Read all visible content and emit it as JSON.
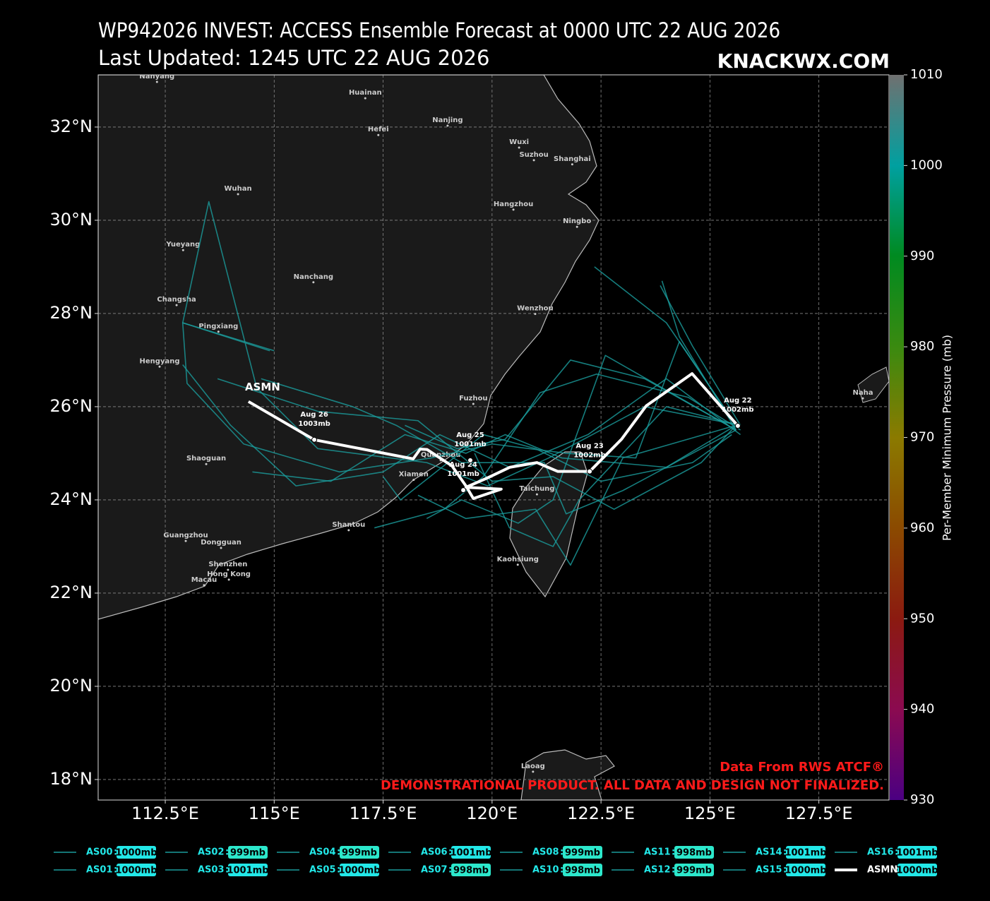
{
  "chart_data": {
    "type": "track-map",
    "title": "WP942026 INVEST: ACCESS Ensemble Forecast at 0000 UTC 22 AUG 2026",
    "subtitle": "Last Updated: 1245 UTC 22 AUG 2026",
    "brand": "KNACKWX.COM",
    "xlim": [
      110.96,
      129.11
    ],
    "ylim": [
      17.56,
      33.12
    ],
    "xticks": [
      {
        "value": 112.5,
        "label": "112.5°E"
      },
      {
        "value": 115,
        "label": "115°E"
      },
      {
        "value": 117.5,
        "label": "117.5°E"
      },
      {
        "value": 120,
        "label": "120°E"
      },
      {
        "value": 122.5,
        "label": "122.5°E"
      },
      {
        "value": 125,
        "label": "125°E"
      },
      {
        "value": 127.5,
        "label": "127.5°E"
      }
    ],
    "yticks": [
      {
        "value": 18,
        "label": "18°N"
      },
      {
        "value": 20,
        "label": "20°N"
      },
      {
        "value": 22,
        "label": "22°N"
      },
      {
        "value": 24,
        "label": "24°N"
      },
      {
        "value": 26,
        "label": "26°N"
      },
      {
        "value": 28,
        "label": "28°N"
      },
      {
        "value": 30,
        "label": "30°N"
      },
      {
        "value": 32,
        "label": "32°N"
      }
    ],
    "grid": true,
    "colorbar": {
      "label": "Per-Member Minimum Pressure (mb)",
      "ylim": [
        930,
        1010
      ],
      "yticks": [
        930,
        940,
        950,
        960,
        970,
        980,
        990,
        1000,
        1010
      ],
      "colors": [
        "#4b0082",
        "#8b0a50",
        "#8b1a10",
        "#8b4a00",
        "#8b7a00",
        "#3a8a10",
        "#008a20",
        "#00a0a0",
        "#707070"
      ]
    },
    "cities": [
      {
        "name": "Nanyang",
        "lon": 112.31,
        "lat": 33.09
      },
      {
        "name": "Huainan",
        "lon": 117.09,
        "lat": 32.74
      },
      {
        "name": "Hefei",
        "lon": 117.39,
        "lat": 31.95
      },
      {
        "name": "Nanjing",
        "lon": 118.98,
        "lat": 32.15
      },
      {
        "name": "Wuxi",
        "lon": 120.62,
        "lat": 31.68
      },
      {
        "name": "Suzhou",
        "lon": 120.96,
        "lat": 31.41
      },
      {
        "name": "Shanghai",
        "lon": 121.84,
        "lat": 31.32
      },
      {
        "name": "Wuhan",
        "lon": 114.17,
        "lat": 30.68
      },
      {
        "name": "Hangzhou",
        "lon": 120.49,
        "lat": 30.35
      },
      {
        "name": "Ningbo",
        "lon": 121.95,
        "lat": 29.98
      },
      {
        "name": "Yueyang",
        "lon": 112.91,
        "lat": 29.48
      },
      {
        "name": "Nanchang",
        "lon": 115.9,
        "lat": 28.79
      },
      {
        "name": "Changsha",
        "lon": 112.76,
        "lat": 28.3
      },
      {
        "name": "Wenzhou",
        "lon": 120.99,
        "lat": 28.11
      },
      {
        "name": "Pingxiang",
        "lon": 113.72,
        "lat": 27.73
      },
      {
        "name": "Hengyang",
        "lon": 112.37,
        "lat": 26.98
      },
      {
        "name": "Fuzhou",
        "lon": 119.57,
        "lat": 26.18
      },
      {
        "name": "Naha",
        "lon": 128.51,
        "lat": 26.3
      },
      {
        "name": "Quanzhou",
        "lon": 118.82,
        "lat": 24.97
      },
      {
        "name": "Xiamen",
        "lon": 118.2,
        "lat": 24.55
      },
      {
        "name": "Shaoguan",
        "lon": 113.44,
        "lat": 24.89
      },
      {
        "name": "Taichung",
        "lon": 121.03,
        "lat": 24.24
      },
      {
        "name": "Shantou",
        "lon": 116.71,
        "lat": 23.47
      },
      {
        "name": "Guangzhou",
        "lon": 112.97,
        "lat": 23.24
      },
      {
        "name": "Dongguan",
        "lon": 113.78,
        "lat": 23.09
      },
      {
        "name": "Shenzhen",
        "lon": 113.94,
        "lat": 22.62
      },
      {
        "name": "Hong Kong",
        "lon": 113.96,
        "lat": 22.41
      },
      {
        "name": "Macau",
        "lon": 113.39,
        "lat": 22.29
      },
      {
        "name": "Kaohsiung",
        "lon": 120.59,
        "lat": 22.73
      },
      {
        "name": "Laoag",
        "lon": 120.94,
        "lat": 18.29
      }
    ],
    "series": [
      {
        "name": "AS00",
        "pressure": "1000mb",
        "color": "#1a9c9c",
        "badge": "#22e8e8",
        "x": [
          125.7,
          124.6,
          123.86
        ],
        "y": [
          25.6,
          27.3,
          28.6
        ]
      },
      {
        "name": "AS01",
        "pressure": "1000mb",
        "color": "#1a9c9c",
        "badge": "#22e8e8",
        "x": [
          125.6,
          124.3,
          123.9
        ],
        "y": [
          25.5,
          27.5,
          28.7
        ]
      },
      {
        "name": "AS02",
        "pressure": "999mb",
        "color": "#1a9c9c",
        "badge": "#2ce8cc",
        "x": [
          125.6,
          123.5,
          121.8,
          120.3,
          119.2,
          118.0
        ],
        "y": [
          25.5,
          26.6,
          27.0,
          25.3,
          25.1,
          25.6
        ]
      },
      {
        "name": "AS03",
        "pressure": "1001mb",
        "color": "#1a9c9c",
        "badge": "#22e8e8",
        "x": [
          125.7,
          123.5,
          121.3,
          119.9,
          118.5,
          116.0,
          114.6,
          113.5,
          112.9,
          114.9
        ],
        "y": [
          25.6,
          26.0,
          24.9,
          24.3,
          24.8,
          25.1,
          26.4,
          30.4,
          27.8,
          27.2
        ]
      },
      {
        "name": "AS04",
        "pressure": "999mb",
        "color": "#1a9c9c",
        "badge": "#2ce8cc",
        "x": [
          125.6,
          122.6,
          121.4,
          120.6,
          119.3,
          118.5
        ],
        "y": [
          25.5,
          27.1,
          24.0,
          23.5,
          24.0,
          23.6
        ]
      },
      {
        "name": "AS05",
        "pressure": "1000mb",
        "color": "#1a9c9c",
        "badge": "#22e8e8",
        "x": [
          125.7,
          124.0,
          122.2,
          120.4,
          118.8,
          117.5,
          115.5,
          114.0,
          112.9
        ],
        "y": [
          25.4,
          26.6,
          25.4,
          24.7,
          25.4,
          24.6,
          24.3,
          25.6,
          26.9
        ]
      },
      {
        "name": "AS06",
        "pressure": "1001mb",
        "color": "#1a9c9c",
        "badge": "#22e8e8",
        "x": [
          125.6,
          123.0,
          121.8,
          121.0,
          119.4,
          118.3
        ],
        "y": [
          25.6,
          24.9,
          22.6,
          23.8,
          23.6,
          24.1
        ]
      },
      {
        "name": "AS07",
        "pressure": "998mb",
        "color": "#1a9c9c",
        "badge": "#2ce8cc",
        "x": [
          125.7,
          124.5,
          122.4,
          121.1,
          119.8,
          118.9,
          117.3
        ],
        "y": [
          25.5,
          26.2,
          26.7,
          26.3,
          24.5,
          23.8,
          23.4
        ]
      },
      {
        "name": "AS08",
        "pressure": "999mb",
        "color": "#1a9c9c",
        "badge": "#2ce8cc",
        "x": [
          125.6,
          124.0,
          121.6,
          120.3,
          119.4,
          118.0,
          116.3,
          114.5
        ],
        "y": [
          25.6,
          24.7,
          24.9,
          25.4,
          25.0,
          25.4,
          24.4,
          24.6
        ]
      },
      {
        "name": "AS10",
        "pressure": "998mb",
        "color": "#1a9c9c",
        "badge": "#2ce8cc",
        "x": [
          125.6,
          123.0,
          121.7,
          121.2,
          119.3,
          117.8,
          116.8,
          114.7
        ],
        "y": [
          25.5,
          24.2,
          23.7,
          24.8,
          24.8,
          25.6,
          26.0,
          26.6
        ]
      },
      {
        "name": "AS11",
        "pressure": "998mb",
        "color": "#1a9c9c",
        "badge": "#2ce8cc",
        "x": [
          125.5,
          124.6,
          122.5,
          121.0,
          119.8,
          117.9,
          117.5
        ],
        "y": [
          25.4,
          24.8,
          24.4,
          25.1,
          25.4,
          24.0,
          24.5
        ]
      },
      {
        "name": "AS12",
        "pressure": "999mb",
        "color": "#1a9c9c",
        "badge": "#2ce8cc",
        "x": [
          125.7,
          124.0,
          122.0,
          121.4,
          120.4,
          119.6
        ],
        "y": [
          25.6,
          26.0,
          24.0,
          23.0,
          23.4,
          25.0
        ]
      },
      {
        "name": "AS14",
        "pressure": "1001mb",
        "color": "#1a9c9c",
        "badge": "#22e8e8",
        "x": [
          125.6,
          124.3,
          123.3,
          121.7,
          120.0,
          118.6,
          116.5,
          114.3,
          113.0,
          112.9,
          115.0
        ],
        "y": [
          25.6,
          27.4,
          24.9,
          25.0,
          25.2,
          24.9,
          24.6,
          25.2,
          26.5,
          27.8,
          27.2
        ]
      },
      {
        "name": "AS15",
        "pressure": "1000mb",
        "color": "#1a9c9c",
        "badge": "#22e8e8",
        "x": [
          125.6,
          124.0,
          122.35
        ],
        "y": [
          25.6,
          27.8,
          29.0
        ]
      },
      {
        "name": "AS16",
        "pressure": "1001mb",
        "color": "#1a9c9c",
        "badge": "#22e8e8",
        "x": [
          125.6,
          124.8,
          122.8,
          121.4,
          120.0,
          118.3,
          116.0,
          113.7
        ],
        "y": [
          25.6,
          24.8,
          23.8,
          24.5,
          24.4,
          25.7,
          25.9,
          26.6
        ]
      },
      {
        "name": "ASMN",
        "pressure": "1000mb",
        "color": "#ffffff",
        "badge": "#22e8e8",
        "mean": true,
        "x": [
          125.64,
          124.59,
          123.54,
          122.97,
          122.24,
          121.51,
          121.03,
          120.41,
          119.89,
          119.4,
          120.21,
          119.57,
          119.4,
          119.08,
          118.51,
          118.35,
          118.19,
          115.92,
          114.41
        ],
        "y": [
          25.59,
          26.71,
          26.02,
          25.3,
          24.61,
          24.61,
          24.8,
          24.7,
          24.47,
          24.27,
          24.23,
          24.03,
          24.3,
          24.73,
          25.08,
          25.09,
          24.88,
          25.29,
          26.11
        ]
      }
    ],
    "points": [
      {
        "date": "Aug 22",
        "pressure": "1002mb",
        "lon": 125.64,
        "lat": 25.59
      },
      {
        "date": "Aug 23",
        "pressure": "1002mb",
        "lon": 122.24,
        "lat": 24.61
      },
      {
        "date": "Aug 24",
        "pressure": "1001mb",
        "lon": 119.34,
        "lat": 24.21
      },
      {
        "date": "Aug 25",
        "pressure": "1001mb",
        "lon": 119.5,
        "lat": 24.85
      },
      {
        "date": "Aug 26",
        "pressure": "1003mb",
        "lon": 115.92,
        "lat": 25.29
      }
    ],
    "source": "Data From RWS ATCF®",
    "disclaimer": "DEMONSTRATIONAL PRODUCT. ALL DATA AND DESIGN NOT FINALIZED."
  }
}
